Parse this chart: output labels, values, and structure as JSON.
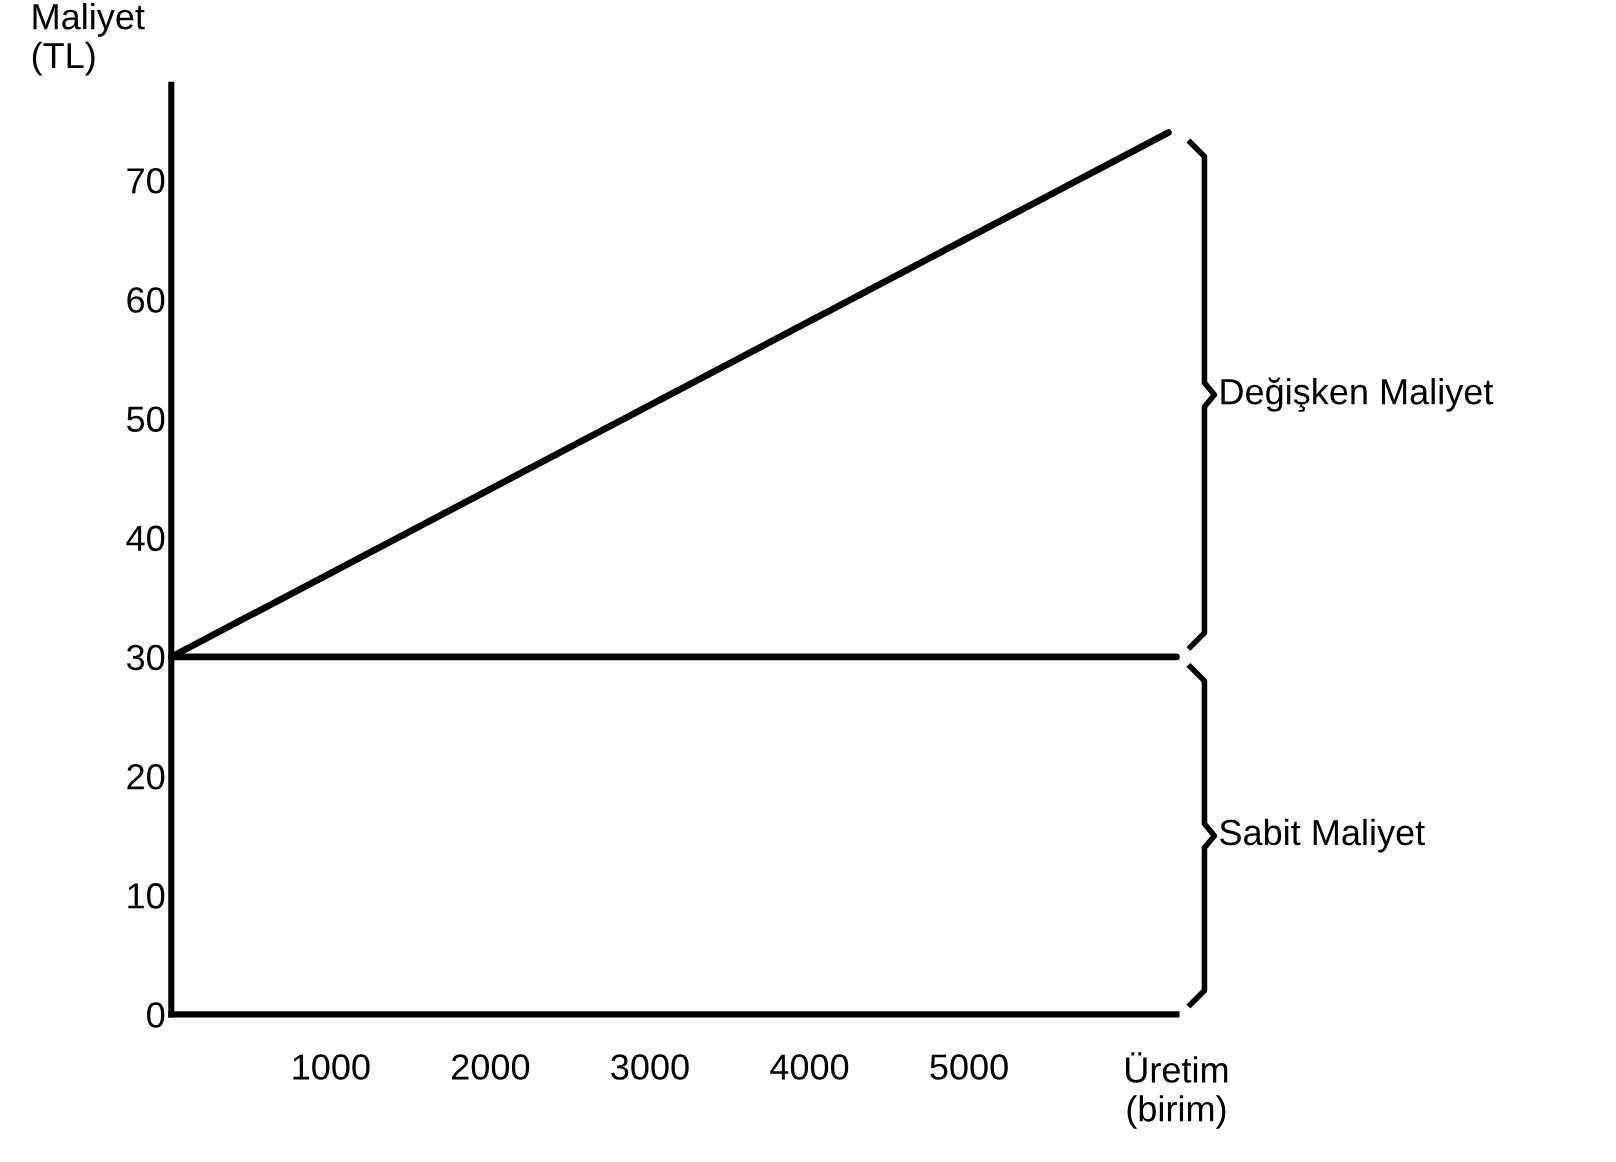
{
  "chart_data": {
    "type": "line",
    "ylabel": "Maliyet\n(TL)",
    "xlabel": "Üretim\n(birim)",
    "series": [
      {
        "x": [
          0,
          6300
        ],
        "values": [
          30,
          30
        ],
        "color": "#000000"
      },
      {
        "x": [
          0,
          6250
        ],
        "values": [
          30,
          74
        ],
        "color": "#000000"
      }
    ],
    "xlim": [
      0,
      6300
    ],
    "ylim": [
      0,
      78
    ],
    "xticks": [
      1000,
      2000,
      3000,
      4000,
      5000
    ],
    "yticks": [
      0,
      10,
      20,
      30,
      40,
      50,
      60,
      70
    ],
    "grid": false,
    "legend": false,
    "marker": "none",
    "line_style": "solid",
    "annotations": [
      "Değişken Maliyet",
      "Sabit Maliyet"
    ]
  }
}
